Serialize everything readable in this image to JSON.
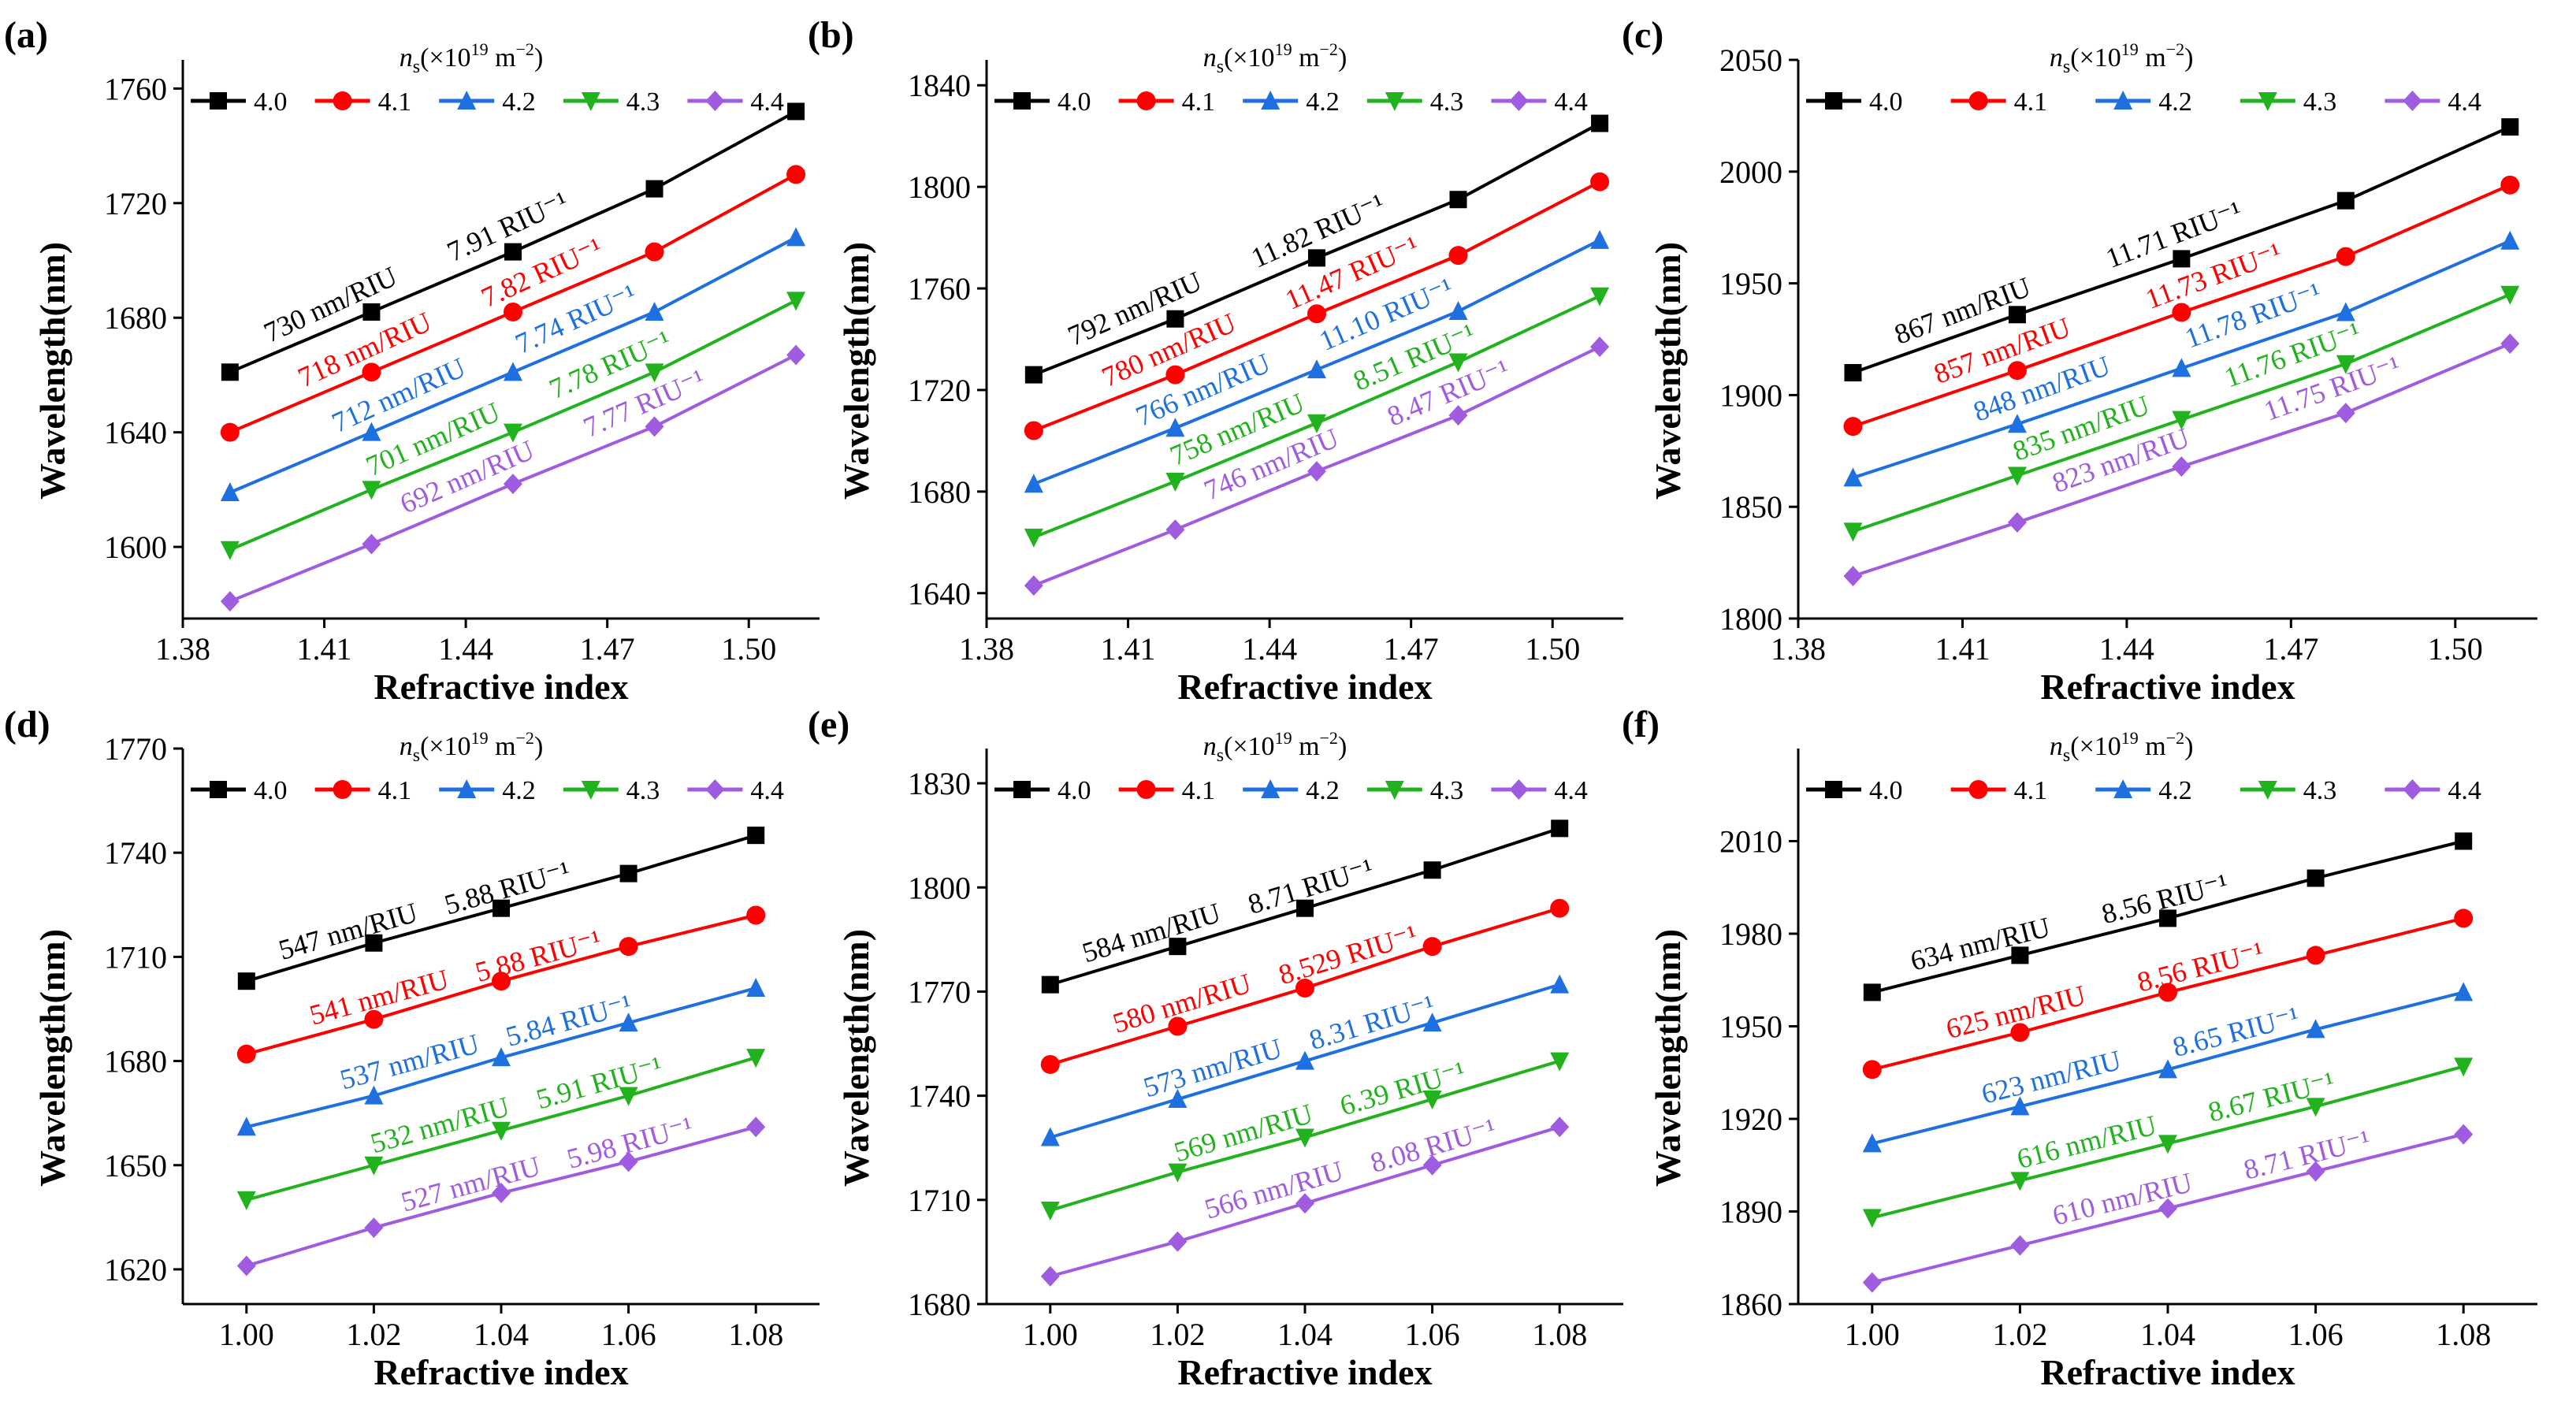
{
  "legend_title": "n",
  "legend_title_sub": "s",
  "legend_title_rest": "(×10",
  "legend_title_exp": "19",
  "legend_title_unit": " m",
  "legend_title_unit_exp": "−2",
  "legend_title_close": ")",
  "series_colors": [
    "#000000",
    "#ff0000",
    "#1e6fe0",
    "#22b21e",
    "#a05ce0"
  ],
  "series_markers": [
    "square",
    "circle",
    "triangle-up",
    "triangle-down",
    "diamond"
  ],
  "chart_data": [
    {
      "panel": "(a)",
      "type": "line",
      "xlabel": "Refractive index",
      "ylabel": "Wavelength(nm)",
      "xlim": [
        1.38,
        1.515
      ],
      "ylim": [
        1575,
        1770
      ],
      "xticks": [
        1.38,
        1.41,
        1.44,
        1.47,
        1.5
      ],
      "xticklabels": [
        "1.38",
        "1.41",
        "1.44",
        "1.47",
        "1.50"
      ],
      "yticks": [
        1600,
        1640,
        1680,
        1720,
        1760
      ],
      "yticklabels": [
        "1600",
        "1640",
        "1680",
        "1720",
        "1760"
      ],
      "x": [
        1.39,
        1.42,
        1.45,
        1.48,
        1.51
      ],
      "series": [
        {
          "name": "4.0",
          "values": [
            1661,
            1682,
            1703,
            1725,
            1752
          ]
        },
        {
          "name": "4.1",
          "values": [
            1640,
            1661,
            1682,
            1703,
            1730
          ]
        },
        {
          "name": "4.2",
          "values": [
            1619,
            1640,
            1661,
            1682,
            1708
          ]
        },
        {
          "name": "4.3",
          "values": [
            1599,
            1620,
            1640,
            1661,
            1686
          ]
        },
        {
          "name": "4.4",
          "values": [
            1581,
            1601,
            1622,
            1642,
            1667
          ]
        }
      ],
      "annotations": [
        {
          "a": "730 nm/RIU",
          "b": "7.91 RIU⁻¹"
        },
        {
          "a": "718 nm/RIU",
          "b": "7.82 RIU⁻¹"
        },
        {
          "a": "712 nm/RIU",
          "b": "7.74 RIU⁻¹"
        },
        {
          "a": "701 nm/RIU",
          "b": "7.78 RIU⁻¹"
        },
        {
          "a": "692 nm/RIU",
          "b": "7.77 RIU⁻¹"
        }
      ]
    },
    {
      "panel": "(b)",
      "type": "line",
      "xlabel": "Refractive index",
      "ylabel": "Wavelength(nm)",
      "xlim": [
        1.38,
        1.515
      ],
      "ylim": [
        1630,
        1850
      ],
      "xticks": [
        1.38,
        1.41,
        1.44,
        1.47,
        1.5
      ],
      "xticklabels": [
        "1.38",
        "1.41",
        "1.44",
        "1.47",
        "1.50"
      ],
      "yticks": [
        1640,
        1680,
        1720,
        1760,
        1800,
        1840
      ],
      "yticklabels": [
        "1640",
        "1680",
        "1720",
        "1760",
        "1800",
        "1840"
      ],
      "x": [
        1.39,
        1.42,
        1.45,
        1.48,
        1.51
      ],
      "series": [
        {
          "name": "4.0",
          "values": [
            1726,
            1748,
            1772,
            1795,
            1825
          ]
        },
        {
          "name": "4.1",
          "values": [
            1704,
            1726,
            1750,
            1773,
            1802
          ]
        },
        {
          "name": "4.2",
          "values": [
            1683,
            1705,
            1728,
            1751,
            1779
          ]
        },
        {
          "name": "4.3",
          "values": [
            1662,
            1684,
            1707,
            1731,
            1757
          ]
        },
        {
          "name": "4.4",
          "values": [
            1643,
            1665,
            1688,
            1710,
            1737
          ]
        }
      ],
      "annotations": [
        {
          "a": "792 nm/RIU",
          "b": "11.82 RIU⁻¹"
        },
        {
          "a": "780 nm/RIU",
          "b": "11.47 RIU⁻¹"
        },
        {
          "a": "766 nm/RIU",
          "b": "11.10 RIU⁻¹"
        },
        {
          "a": "758 nm/RIU",
          "b": "8.51 RIU⁻¹"
        },
        {
          "a": "746 nm/RIU",
          "b": "8.47 RIU⁻¹"
        }
      ]
    },
    {
      "panel": "(c)",
      "type": "line",
      "xlabel": "Refractive index",
      "ylabel": "Wavelength(nm)",
      "xlim": [
        1.38,
        1.515
      ],
      "ylim": [
        1800,
        2050
      ],
      "xticks": [
        1.38,
        1.41,
        1.44,
        1.47,
        1.5
      ],
      "xticklabels": [
        "1.38",
        "1.41",
        "1.44",
        "1.47",
        "1.50"
      ],
      "yticks": [
        1800,
        1850,
        1900,
        1950,
        2000,
        2050
      ],
      "yticklabels": [
        "1800",
        "1850",
        "1900",
        "1950",
        "2000",
        "2050"
      ],
      "x": [
        1.39,
        1.42,
        1.45,
        1.48,
        1.51
      ],
      "series": [
        {
          "name": "4.0",
          "values": [
            1910,
            1936,
            1961,
            1987,
            2020
          ]
        },
        {
          "name": "4.1",
          "values": [
            1886,
            1911,
            1937,
            1962,
            1994
          ]
        },
        {
          "name": "4.2",
          "values": [
            1863,
            1887,
            1912,
            1937,
            1969
          ]
        },
        {
          "name": "4.3",
          "values": [
            1839,
            1864,
            1889,
            1914,
            1945
          ]
        },
        {
          "name": "4.4",
          "values": [
            1819,
            1843,
            1868,
            1892,
            1923
          ]
        }
      ],
      "annotations": [
        {
          "a": "867 nm/RIU",
          "b": "11.71 RIU⁻¹"
        },
        {
          "a": "857 nm/RIU",
          "b": "11.73 RIU⁻¹"
        },
        {
          "a": "848 nm/RIU",
          "b": "11.78 RIU⁻¹"
        },
        {
          "a": "835 nm/RIU",
          "b": "11.76 RIU⁻¹"
        },
        {
          "a": "823 nm/RIU",
          "b": "11.75 RIU⁻¹"
        }
      ]
    },
    {
      "panel": "(d)",
      "type": "line",
      "xlabel": "Refractive index",
      "ylabel": "Wavelength(nm)",
      "xlim": [
        0.99,
        1.09
      ],
      "ylim": [
        1610,
        1770
      ],
      "xticks": [
        1.0,
        1.02,
        1.04,
        1.06,
        1.08
      ],
      "xticklabels": [
        "1.00",
        "1.02",
        "1.04",
        "1.06",
        "1.08"
      ],
      "yticks": [
        1620,
        1650,
        1680,
        1710,
        1740,
        1770
      ],
      "yticklabels": [
        "1620",
        "1650",
        "1680",
        "1710",
        "1740",
        "1770"
      ],
      "x": [
        1.0,
        1.02,
        1.04,
        1.06,
        1.08
      ],
      "series": [
        {
          "name": "4.0",
          "values": [
            1703,
            1714,
            1724,
            1734,
            1745
          ]
        },
        {
          "name": "4.1",
          "values": [
            1682,
            1692,
            1703,
            1713,
            1722
          ]
        },
        {
          "name": "4.2",
          "values": [
            1661,
            1670,
            1681,
            1691,
            1701
          ]
        },
        {
          "name": "4.3",
          "values": [
            1640,
            1650,
            1660,
            1670,
            1681
          ]
        },
        {
          "name": "4.4",
          "values": [
            1621,
            1632,
            1642,
            1651,
            1661
          ]
        }
      ],
      "annotations": [
        {
          "a": "547 nm/RIU",
          "b": "5.88 RIU⁻¹"
        },
        {
          "a": "541 nm/RIU",
          "b": "5.88 RIU⁻¹"
        },
        {
          "a": "537 nm/RIU",
          "b": "5.84 RIU⁻¹"
        },
        {
          "a": "532 nm/RIU",
          "b": "5.91 RIU⁻¹"
        },
        {
          "a": "527 nm/RIU",
          "b": "5.98 RIU⁻¹"
        }
      ]
    },
    {
      "panel": "(e)",
      "type": "line",
      "xlabel": "Refractive index",
      "ylabel": "Wavelength(nm)",
      "xlim": [
        0.99,
        1.09
      ],
      "ylim": [
        1680,
        1840
      ],
      "xticks": [
        1.0,
        1.02,
        1.04,
        1.06,
        1.08
      ],
      "xticklabels": [
        "1.00",
        "1.02",
        "1.04",
        "1.06",
        "1.08"
      ],
      "yticks": [
        1680,
        1710,
        1740,
        1770,
        1800,
        1830
      ],
      "yticklabels": [
        "1680",
        "1710",
        "1740",
        "1770",
        "1800",
        "1830"
      ],
      "x": [
        1.0,
        1.02,
        1.04,
        1.06,
        1.08
      ],
      "series": [
        {
          "name": "4.0",
          "values": [
            1772,
            1783,
            1794,
            1805,
            1817
          ]
        },
        {
          "name": "4.1",
          "values": [
            1749,
            1760,
            1771,
            1783,
            1794
          ]
        },
        {
          "name": "4.2",
          "values": [
            1728,
            1739,
            1750,
            1761,
            1772
          ]
        },
        {
          "name": "4.3",
          "values": [
            1707,
            1718,
            1728,
            1739,
            1750
          ]
        },
        {
          "name": "4.4",
          "values": [
            1688,
            1698,
            1709,
            1720,
            1731
          ]
        }
      ],
      "annotations": [
        {
          "a": "584 nm/RIU",
          "b": "8.71 RIU⁻¹"
        },
        {
          "a": "580 nm/RIU",
          "b": "8.529 RIU⁻¹"
        },
        {
          "a": "573 nm/RIU",
          "b": "8.31 RIU⁻¹"
        },
        {
          "a": "569 nm/RIU",
          "b": "6.39 RIU⁻¹"
        },
        {
          "a": "566 nm/RIU",
          "b": "8.08 RIU⁻¹"
        }
      ]
    },
    {
      "panel": "(f)",
      "type": "line",
      "xlabel": "Refractive index",
      "ylabel": "Wavelength(nm)",
      "xlim": [
        0.99,
        1.09
      ],
      "ylim": [
        1860,
        2040
      ],
      "xticks": [
        1.0,
        1.02,
        1.04,
        1.06,
        1.08
      ],
      "xticklabels": [
        "1.00",
        "1.02",
        "1.04",
        "1.06",
        "1.08"
      ],
      "yticks": [
        1860,
        1890,
        1920,
        1950,
        1980,
        2010
      ],
      "yticklabels": [
        "1860",
        "1890",
        "1920",
        "1950",
        "1980",
        "2010"
      ],
      "x": [
        1.0,
        1.02,
        1.04,
        1.06,
        1.08
      ],
      "series": [
        {
          "name": "4.0",
          "values": [
            1961,
            1973,
            1985,
            1998,
            2010
          ]
        },
        {
          "name": "4.1",
          "values": [
            1936,
            1948,
            1961,
            1973,
            1985
          ]
        },
        {
          "name": "4.2",
          "values": [
            1912,
            1924,
            1936,
            1949,
            1961
          ]
        },
        {
          "name": "4.3",
          "values": [
            1888,
            1900,
            1912,
            1924,
            1937
          ]
        },
        {
          "name": "4.4",
          "values": [
            1867,
            1879,
            1891,
            1903,
            1915
          ]
        }
      ],
      "annotations": [
        {
          "a": "634 nm/RIU",
          "b": "8.56 RIU⁻¹"
        },
        {
          "a": "625 nm/RIU",
          "b": "8.56 RIU⁻¹"
        },
        {
          "a": "623 nm/RIU",
          "b": "8.65 RIU⁻¹"
        },
        {
          "a": "616 nm/RIU",
          "b": "8.67 RIU⁻¹"
        },
        {
          "a": "610 nm/RIU",
          "b": "8.71 RIU⁻¹"
        }
      ]
    }
  ]
}
